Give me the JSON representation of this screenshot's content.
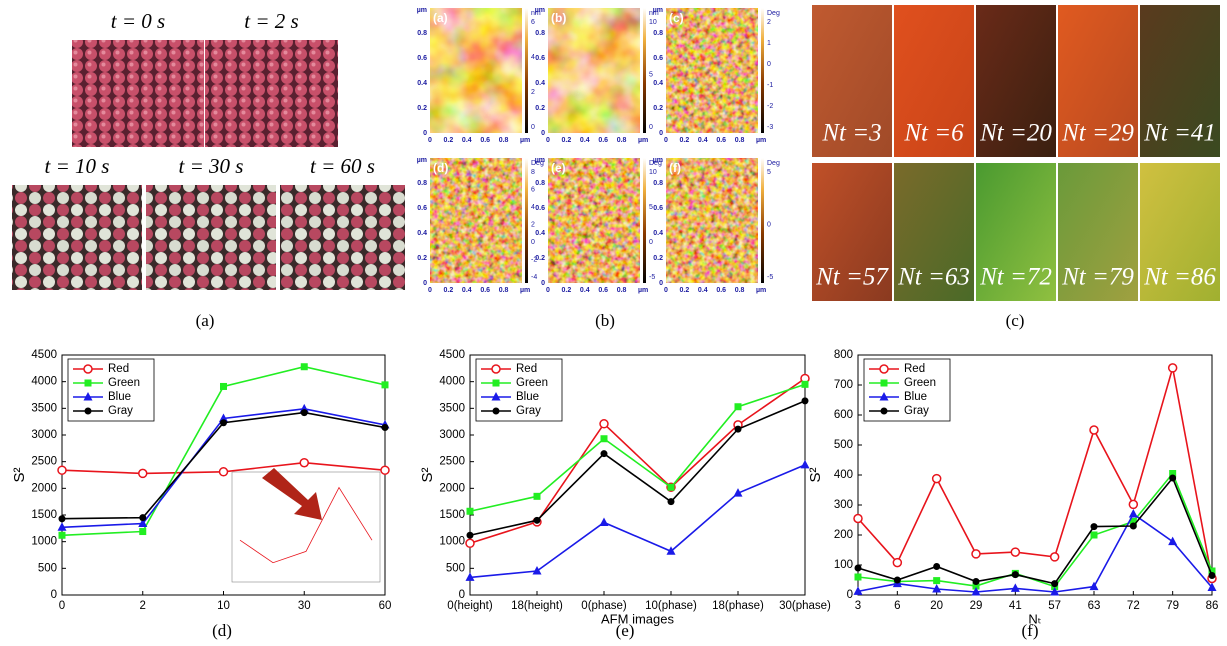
{
  "figure": {
    "a": {
      "caption": "(a)",
      "frames": [
        "t = 0 s",
        "t = 2 s",
        "t = 10 s",
        "t = 30 s",
        "t = 60 s"
      ]
    },
    "b": {
      "caption": "(b)",
      "axis_ticks": [
        "0",
        "0.2",
        "0.4",
        "0.6",
        "0.8"
      ],
      "unit": "µm",
      "images": [
        {
          "label": "(a)",
          "colorbar_unit": "nm",
          "colorbar_ticks": [
            "0",
            "2",
            "4",
            "6"
          ]
        },
        {
          "label": "(b)",
          "colorbar_unit": "nm",
          "colorbar_ticks": [
            "0",
            "5",
            "10"
          ]
        },
        {
          "label": "(c)",
          "colorbar_unit": "Deg",
          "colorbar_ticks": [
            "-3",
            "-2",
            "-1",
            "0",
            "1",
            "2"
          ]
        },
        {
          "label": "(d)",
          "colorbar_unit": "Deg",
          "colorbar_ticks": [
            "-4",
            "-2",
            "0",
            "2",
            "4",
            "6",
            "8"
          ]
        },
        {
          "label": "(e)",
          "colorbar_unit": "Deg",
          "colorbar_ticks": [
            "-5",
            "0",
            "5",
            "10"
          ]
        },
        {
          "label": "(f)",
          "colorbar_unit": "Deg",
          "colorbar_ticks": [
            "-5",
            "0",
            "5"
          ]
        }
      ]
    },
    "c": {
      "caption": "(c)",
      "frames": [
        "Nt =3",
        "Nt =6",
        "Nt =20",
        "Nt =29",
        "Nt =41",
        "Nt =57",
        "Nt =63",
        "Nt =72",
        "Nt =79",
        "Nt =86"
      ]
    }
  },
  "chart_data": [
    {
      "type": "line",
      "caption": "(d)",
      "ylabel": "S²",
      "categories": [
        "0",
        "2",
        "10",
        "30",
        "60"
      ],
      "ylim": [
        0,
        4500
      ],
      "yticks": [
        0,
        500,
        1000,
        1500,
        2000,
        2500,
        3000,
        3500,
        4000,
        4500
      ],
      "legend": "upper left",
      "series": [
        {
          "name": "Red",
          "color": "#e8141c",
          "marker": "circle-open",
          "values": [
            2340,
            2280,
            2310,
            2480,
            2340
          ]
        },
        {
          "name": "Green",
          "color": "#22ee22",
          "marker": "square",
          "values": [
            1120,
            1190,
            3910,
            4280,
            3940
          ]
        },
        {
          "name": "Blue",
          "color": "#1a1ae8",
          "marker": "triangle",
          "values": [
            1270,
            1340,
            3310,
            3490,
            3190
          ]
        },
        {
          "name": "Gray",
          "color": "#000000",
          "marker": "circle",
          "values": [
            1430,
            1450,
            3230,
            3420,
            3140
          ]
        }
      ],
      "inset": {
        "series": 0,
        "ylim": [
          2250,
          2500
        ]
      }
    },
    {
      "type": "line",
      "caption": "(e)",
      "ylabel": "S²",
      "xlabel": "AFM images",
      "categories": [
        "0(height)",
        "18(height)",
        "0(phase)",
        "10(phase)",
        "18(phase)",
        "30(phase)"
      ],
      "ylim": [
        0,
        4500
      ],
      "yticks": [
        0,
        500,
        1000,
        1500,
        2000,
        2500,
        3000,
        3500,
        4000,
        4500
      ],
      "legend": "upper left",
      "series": [
        {
          "name": "Red",
          "color": "#e8141c",
          "marker": "circle-open",
          "values": [
            970,
            1370,
            3210,
            2020,
            3190,
            4060
          ]
        },
        {
          "name": "Green",
          "color": "#22ee22",
          "marker": "square",
          "values": [
            1570,
            1850,
            2930,
            2020,
            3530,
            3950
          ]
        },
        {
          "name": "Blue",
          "color": "#1a1ae8",
          "marker": "triangle",
          "values": [
            330,
            450,
            1360,
            820,
            1910,
            2440
          ]
        },
        {
          "name": "Gray",
          "color": "#000000",
          "marker": "circle",
          "values": [
            1120,
            1400,
            2650,
            1750,
            3110,
            3640
          ]
        }
      ]
    },
    {
      "type": "line",
      "caption": "(f)",
      "ylabel": "S²",
      "xlabel": "Nₜ",
      "categories": [
        "3",
        "6",
        "20",
        "29",
        "41",
        "57",
        "63",
        "72",
        "79",
        "86"
      ],
      "ylim": [
        0,
        800
      ],
      "yticks": [
        0,
        100,
        200,
        300,
        400,
        500,
        600,
        700,
        800
      ],
      "legend": "upper left",
      "series": [
        {
          "name": "Red",
          "color": "#e8141c",
          "marker": "circle-open",
          "values": [
            255,
            108,
            388,
            137,
            143,
            127,
            550,
            302,
            757,
            55
          ]
        },
        {
          "name": "Green",
          "color": "#22ee22",
          "marker": "square",
          "values": [
            60,
            45,
            48,
            30,
            72,
            28,
            200,
            245,
            405,
            80
          ]
        },
        {
          "name": "Blue",
          "color": "#1a1ae8",
          "marker": "triangle",
          "values": [
            12,
            38,
            20,
            10,
            22,
            10,
            28,
            270,
            178,
            25
          ]
        },
        {
          "name": "Gray",
          "color": "#000000",
          "marker": "circle",
          "values": [
            90,
            50,
            95,
            45,
            68,
            38,
            228,
            230,
            390,
            65
          ]
        }
      ]
    }
  ]
}
